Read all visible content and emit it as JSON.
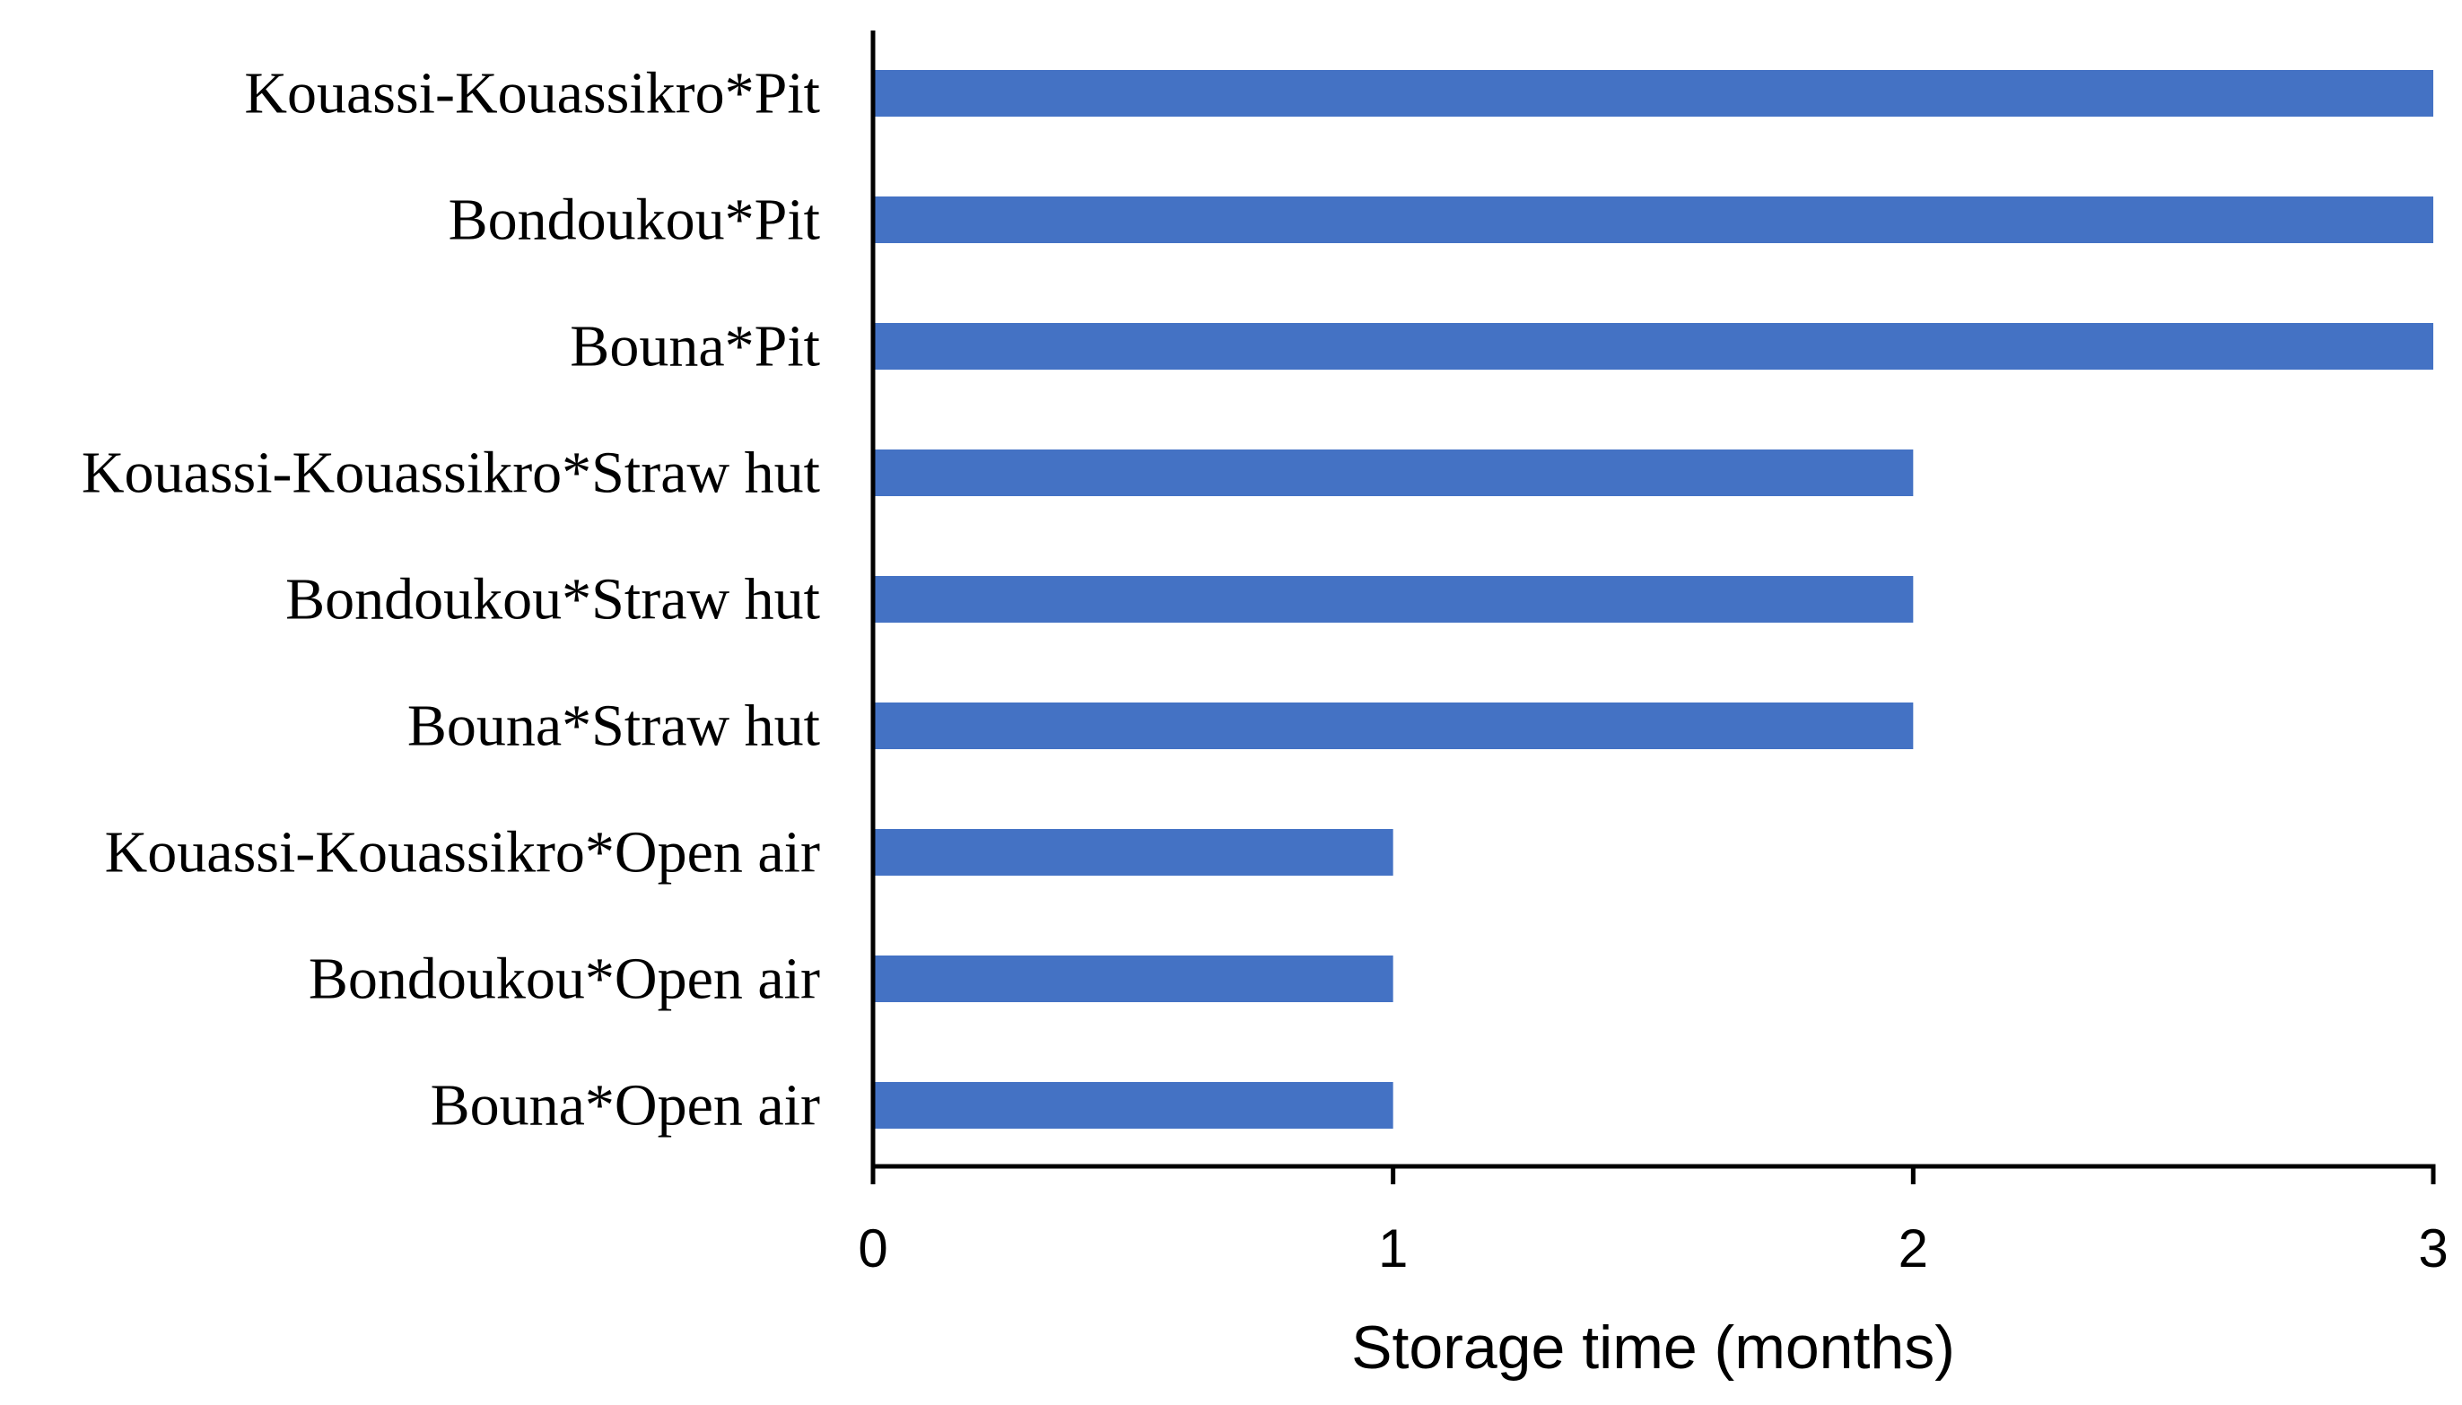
{
  "chart_data": {
    "type": "bar",
    "orientation": "horizontal",
    "categories": [
      "Kouassi-Kouassikro*Pit",
      "Bondoukou*Pit",
      "Bouna*Pit",
      "Kouassi-Kouassikro*Straw hut",
      "Bondoukou*Straw hut",
      "Bouna*Straw hut",
      "Kouassi-Kouassikro*Open air",
      "Bondoukou*Open air",
      "Bouna*Open air"
    ],
    "values": [
      3,
      3,
      3,
      2,
      2,
      2,
      1,
      1,
      1
    ],
    "xlabel": "Storage time (months)",
    "ylabel": "",
    "xlim": [
      0,
      3
    ],
    "xticks": [
      "0",
      "1",
      "2",
      "3"
    ],
    "grid": false,
    "bar_color": "#4472C4"
  }
}
